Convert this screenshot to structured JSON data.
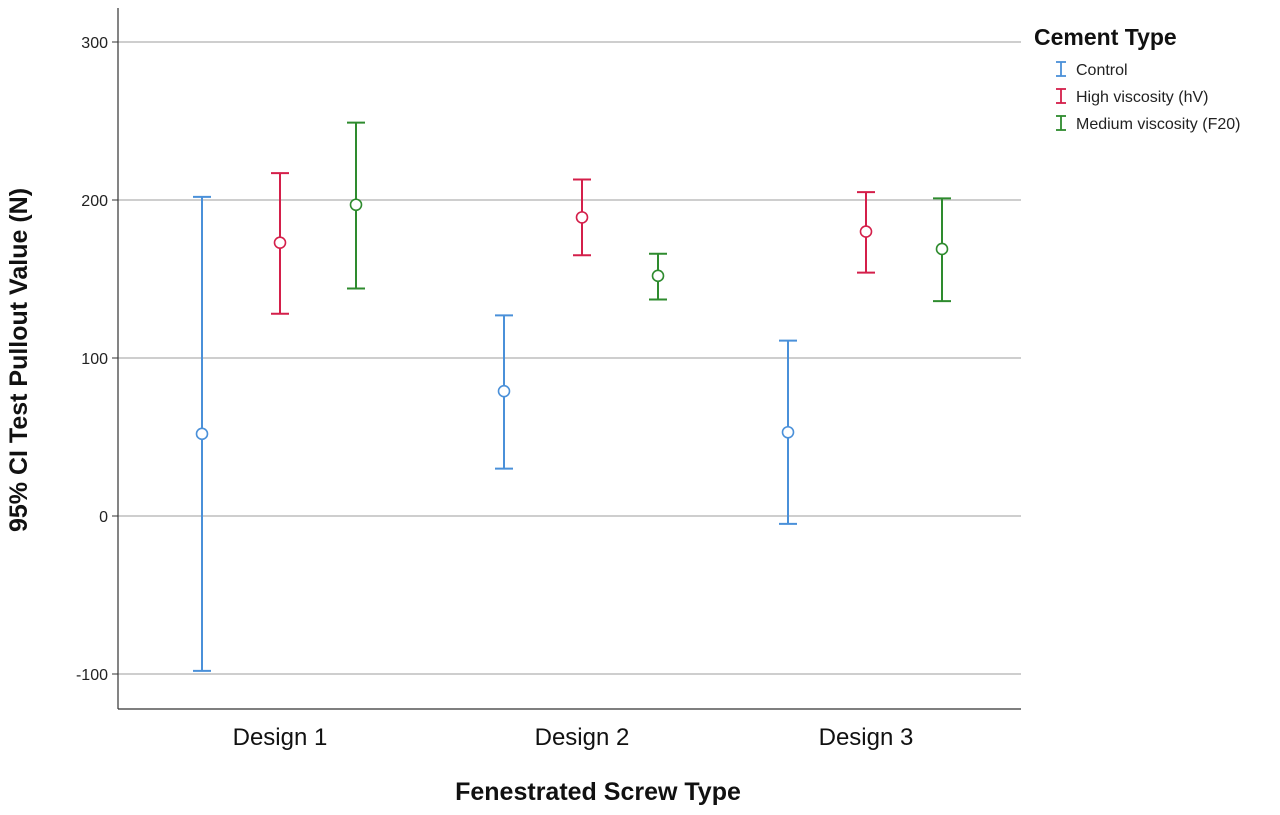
{
  "chart_data": {
    "type": "errorbar",
    "xlabel": "Fenestrated Screw Type",
    "ylabel": "95% CI Test Pullout Value (N)",
    "categories": [
      "Design 1",
      "Design 2",
      "Design 3"
    ],
    "yticks": [
      -100,
      0,
      100,
      200,
      300
    ],
    "ylim": [
      -120,
      323
    ],
    "grid": true,
    "legend": {
      "title": "Cement Type",
      "placement": "top-right"
    },
    "series": [
      {
        "name": "Control",
        "color": "#4a90d9",
        "mean": [
          52,
          79,
          53
        ],
        "lower": [
          -98,
          30,
          -5
        ],
        "upper": [
          202,
          127,
          111
        ]
      },
      {
        "name": "High viscosity (hV)",
        "color": "#d41f4a",
        "mean": [
          173,
          189,
          180
        ],
        "lower": [
          128,
          165,
          154
        ],
        "upper": [
          217,
          213,
          205
        ]
      },
      {
        "name": "Medium viscosity (F20)",
        "color": "#2e8b2e",
        "mean": [
          197,
          152,
          169
        ],
        "lower": [
          144,
          137,
          136
        ],
        "upper": [
          249,
          166,
          201
        ]
      }
    ]
  }
}
